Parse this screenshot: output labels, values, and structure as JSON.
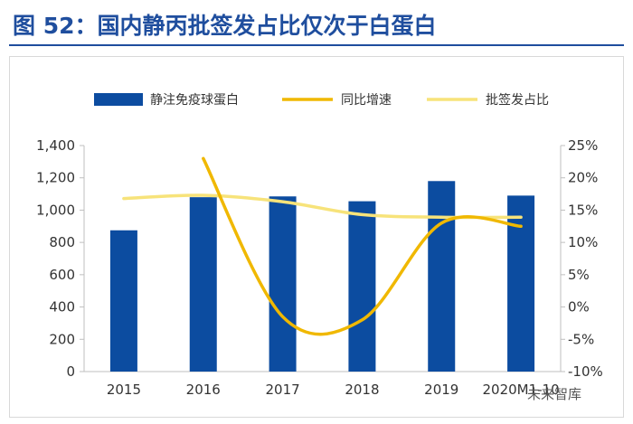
{
  "title": "图 52：国内静丙批签发占比仅次于白蛋白",
  "watermark": "未来智库",
  "colors": {
    "title": "#1f4e9e",
    "bar": "#0c4ca0",
    "growth": "#f0b800",
    "share": "#f7e37a",
    "axis_text": "#333333"
  },
  "chart_data": {
    "type": "bar",
    "categories": [
      "2015",
      "2016",
      "2017",
      "2018",
      "2019",
      "2020M1-10"
    ],
    "y_left": {
      "ylim": [
        0,
        1400
      ],
      "ticks": [
        "0",
        "200",
        "400",
        "600",
        "800",
        "1,000",
        "1,200",
        "1,400"
      ]
    },
    "y_right": {
      "ylim": [
        -10,
        25
      ],
      "ticks": [
        "-10%",
        "-5%",
        "0%",
        "5%",
        "10%",
        "15%",
        "20%",
        "25%"
      ]
    },
    "legend_position": "top",
    "series": [
      {
        "name": "静注免疫球蛋白",
        "kind": "bar",
        "axis": "left",
        "values": [
          875,
          1080,
          1085,
          1055,
          1180,
          1090
        ]
      },
      {
        "name": "同比增速",
        "kind": "line",
        "axis": "right",
        "smooth": true,
        "values": [
          null,
          23,
          -1.5,
          -2,
          13,
          12.5
        ]
      },
      {
        "name": "批签发占比",
        "kind": "line",
        "axis": "right",
        "smooth": true,
        "values": [
          16.8,
          17.3,
          16.3,
          14.3,
          13.9,
          13.9
        ]
      }
    ]
  }
}
